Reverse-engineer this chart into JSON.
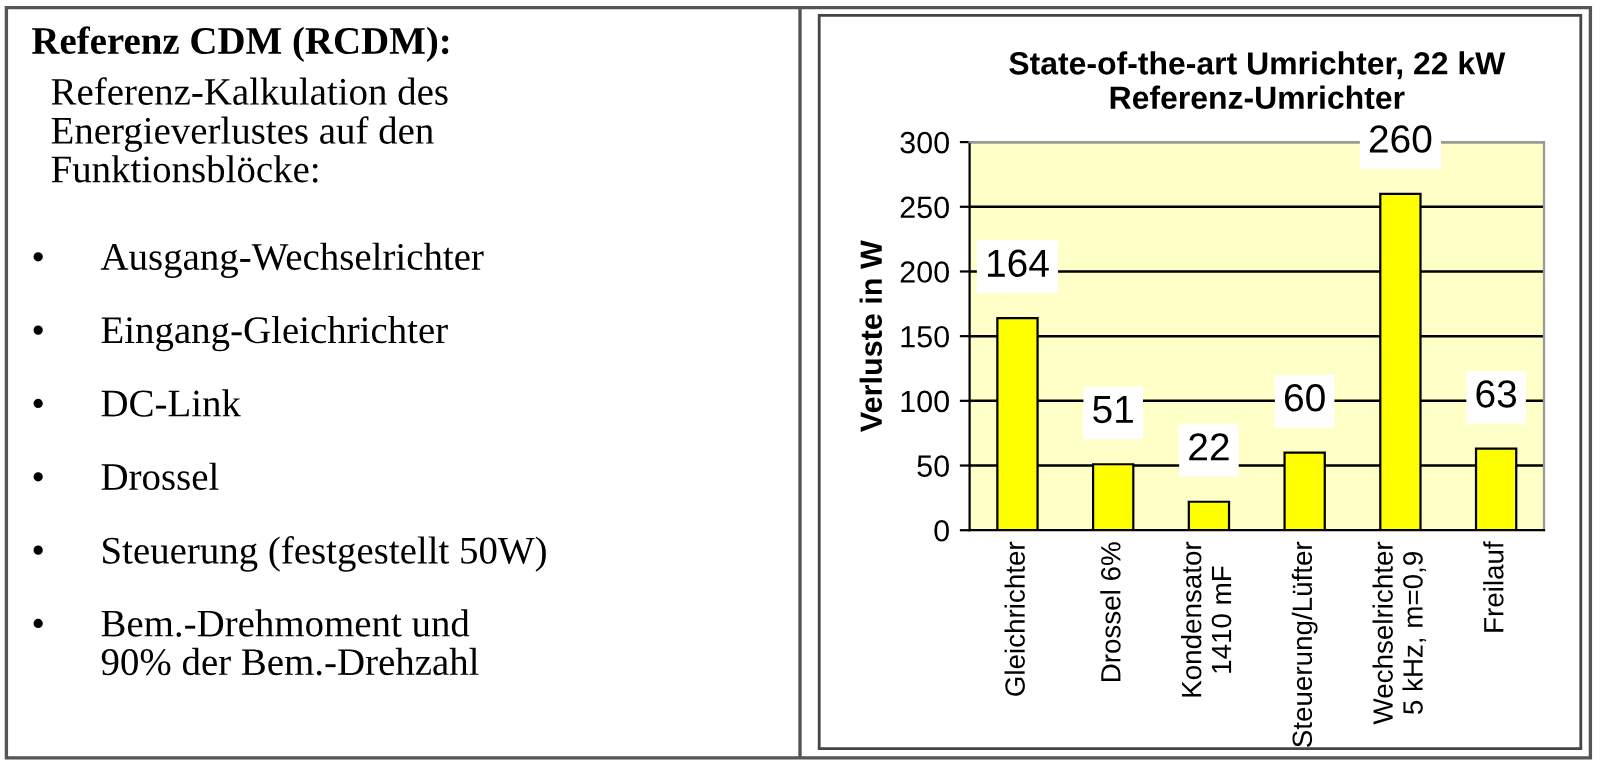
{
  "chart_data": [
    {
      "type": "other",
      "title": "Referenz CDM (RCDM):",
      "annotations": [
        "Referenz-Kalkulation des\nEnergieverlustes auf den\nFunktionsblöcke:",
        "• Ausgang-Wechselrichter",
        "• Eingang-Gleichrichter",
        "• DC-Link",
        "• Drossel",
        "• Steuerung (festgestellt 50W)",
        "• Bem.-Drehmoment und\n90% der Bem.-Drehzahl"
      ]
    },
    {
      "type": "bar",
      "title": "State-of-the-art Umrichter, 22 kW\nReferenz-Umrichter",
      "ylabel": "Verluste in W",
      "categories": [
        "Gleichrichter",
        "Drossel 6%",
        "Kondensator\n1410 mF",
        "Steuerung/Lüfter",
        "Wechselrichter\n5 kHz, m=0,9",
        "Freilauf"
      ],
      "values": [
        164,
        51,
        22,
        60,
        260,
        63
      ],
      "color": "#ffff00",
      "ylim": [
        0,
        300
      ],
      "yticks": [
        0,
        50,
        100,
        150,
        200,
        250,
        300
      ],
      "grid": "y",
      "data_labels": true
    }
  ]
}
